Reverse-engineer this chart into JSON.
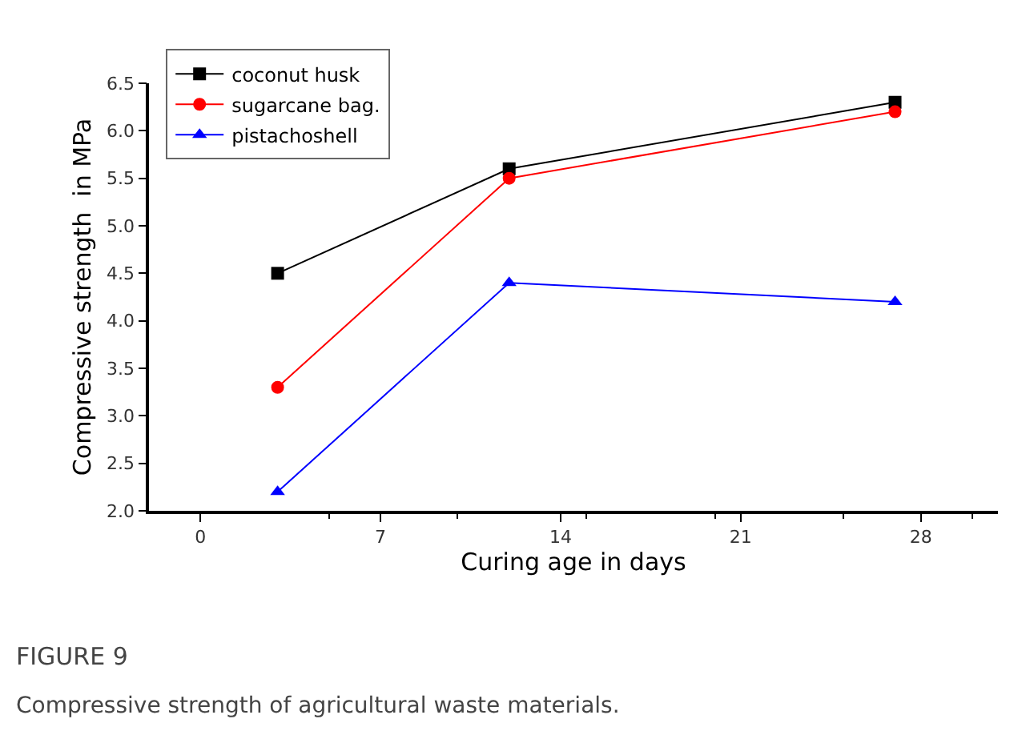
{
  "chart_data": {
    "type": "line",
    "xlabel": "Curing age in days",
    "ylabel": "Compressive strength  in MPa",
    "x": [
      3,
      12,
      27
    ],
    "series": [
      {
        "name": "coconut husk",
        "color": "#000000",
        "marker": "square",
        "values": [
          4.5,
          5.6,
          6.3
        ]
      },
      {
        "name": "sugarcane bag.",
        "color": "#ff0000",
        "marker": "circle",
        "values": [
          3.3,
          5.5,
          6.2
        ]
      },
      {
        "name": "pistachoshell",
        "color": "#0000ff",
        "marker": "triangle",
        "values": [
          2.2,
          4.4,
          4.2
        ]
      }
    ],
    "xlim": [
      -2,
      31
    ],
    "xticks": [
      0,
      7,
      14,
      21,
      28
    ],
    "ylim": [
      2.0,
      6.5
    ],
    "yticks": [
      {
        "value": 2.0,
        "label": "2.0"
      },
      {
        "value": 2.5,
        "label": "2.5"
      },
      {
        "value": 3.0,
        "label": "3.0"
      },
      {
        "value": 3.5,
        "label": "3.5"
      },
      {
        "value": 4.0,
        "label": "4.0"
      },
      {
        "value": 4.5,
        "label": "4.5"
      },
      {
        "value": 5.0,
        "label": "5.0"
      },
      {
        "value": 5.5,
        "label": "5.5"
      },
      {
        "value": 6.0,
        "label": "6.0"
      },
      {
        "value": 6.5,
        "label": "6.5"
      }
    ],
    "legend": "top left",
    "line_style": "solid",
    "annotations": [
      "FIGURE 9",
      "Compressive strength of agricultural waste materials."
    ]
  }
}
